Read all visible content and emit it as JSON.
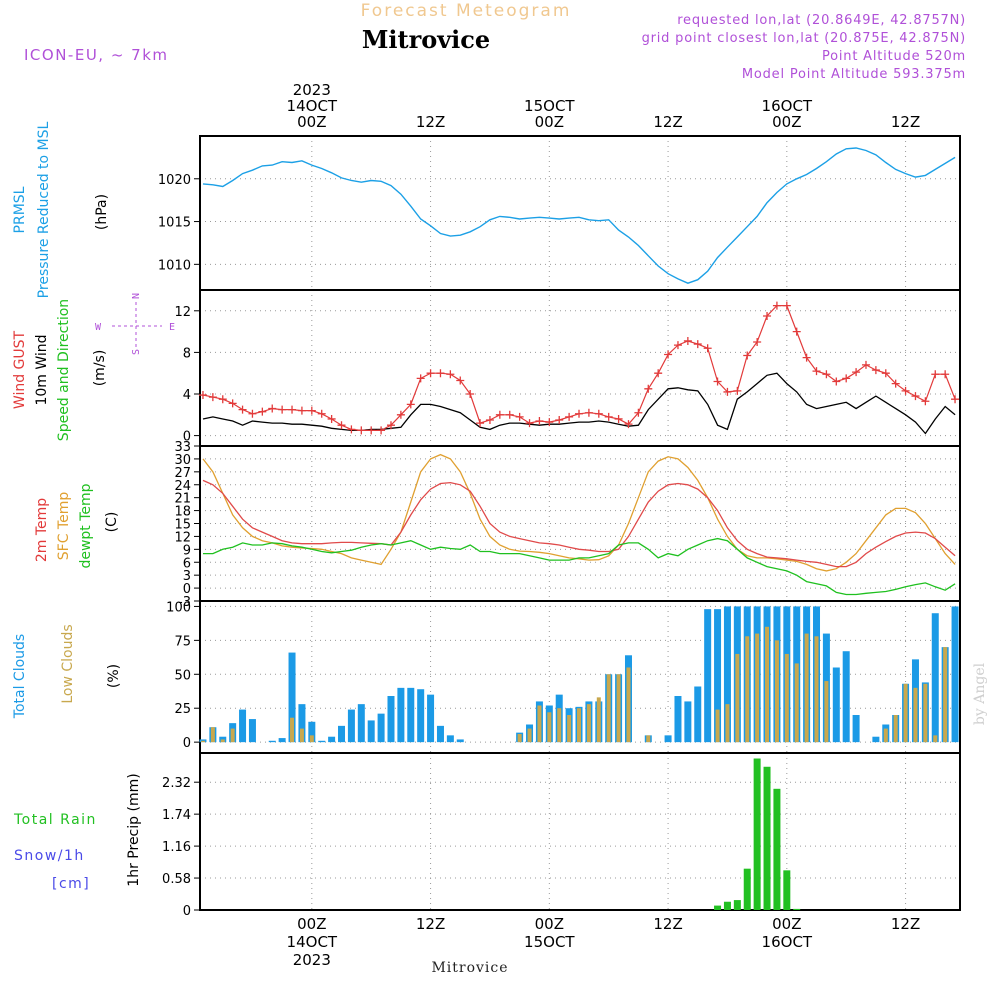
{
  "header": {
    "subtitle": "Forecast Meteogram",
    "title": "Mitrovice",
    "model": "ICON-EU, ~ 7km",
    "requested": "requested lon,lat (20.8649E, 42.8757N)",
    "gridpoint": "grid point closest lon,lat (20.875E, 42.875N)",
    "point_alt": "Point Altitude 520m",
    "model_alt": "Model Point Altitude 593.375m",
    "footer_name": "Mitrovice",
    "watermark": "by Angel"
  },
  "colors": {
    "pressure": "#1ca0e6",
    "gust": "#e23a3a",
    "wind": "#000000",
    "temp2m": "#e04a4a",
    "sfctemp": "#e0a030",
    "dewpt": "#1fc01f",
    "total_cloud": "#1b9ae6",
    "low_cloud": "#c8a84e",
    "rain": "#22c022",
    "snow": "#4a4ae8",
    "accent": "#b050d8",
    "subtitle": "#f0c890",
    "grid": "#9a9a9a"
  },
  "time_axis": {
    "top_labels": [
      {
        "t": 0,
        "lines": [
          "2023",
          "14OCT",
          "00Z"
        ]
      },
      {
        "t": 12,
        "lines": [
          "12Z"
        ]
      },
      {
        "t": 24,
        "lines": [
          "15OCT",
          "00Z"
        ]
      },
      {
        "t": 36,
        "lines": [
          "12Z"
        ]
      },
      {
        "t": 48,
        "lines": [
          "16OCT",
          "00Z"
        ]
      },
      {
        "t": 60,
        "lines": [
          "12Z"
        ]
      }
    ],
    "bottom_labels": [
      {
        "t": 0,
        "lines": [
          "00Z",
          "14OCT",
          "2023"
        ]
      },
      {
        "t": 12,
        "lines": [
          "12Z"
        ]
      },
      {
        "t": 24,
        "lines": [
          "00Z",
          "15OCT"
        ]
      },
      {
        "t": 36,
        "lines": [
          "12Z"
        ]
      },
      {
        "t": 48,
        "lines": [
          "00Z",
          "16OCT"
        ]
      },
      {
        "t": 60,
        "lines": [
          "12Z"
        ]
      }
    ],
    "tmin": -11.3,
    "tmax": 65.5
  },
  "chart_data": [
    {
      "type": "line",
      "id": "pressure",
      "ylabel_lines": [
        "PRMSL",
        "Pressure Reduced to MSL"
      ],
      "unit": "(hPa)",
      "ylim": [
        1007,
        1025
      ],
      "yticks": [
        1010,
        1015,
        1020
      ],
      "x": [
        -11,
        -10,
        -9,
        -8,
        -7,
        -6,
        -5,
        -4,
        -3,
        -2,
        -1,
        0,
        1,
        2,
        3,
        4,
        5,
        6,
        7,
        8,
        9,
        10,
        11,
        12,
        13,
        14,
        15,
        16,
        17,
        18,
        19,
        20,
        21,
        22,
        23,
        24,
        25,
        26,
        27,
        28,
        29,
        30,
        31,
        32,
        33,
        34,
        35,
        36,
        37,
        38,
        39,
        40,
        41,
        42,
        43,
        44,
        45,
        46,
        47,
        48,
        49,
        50,
        51,
        52,
        53,
        54,
        55,
        56,
        57,
        58,
        59,
        60,
        61,
        62,
        63,
        64,
        65
      ],
      "series": [
        {
          "name": "PRMSL",
          "values": [
            1019.4,
            1019.3,
            1019.1,
            1019.8,
            1020.6,
            1021.0,
            1021.5,
            1021.6,
            1022.0,
            1021.9,
            1022.1,
            1021.6,
            1021.2,
            1020.7,
            1020.1,
            1019.8,
            1019.6,
            1019.8,
            1019.7,
            1019.2,
            1018.2,
            1016.8,
            1015.3,
            1014.5,
            1013.6,
            1013.3,
            1013.4,
            1013.8,
            1014.4,
            1015.2,
            1015.6,
            1015.5,
            1015.3,
            1015.4,
            1015.5,
            1015.4,
            1015.3,
            1015.4,
            1015.5,
            1015.2,
            1015.1,
            1015.2,
            1014.0,
            1013.2,
            1012.2,
            1011.0,
            1009.8,
            1008.9,
            1008.3,
            1007.8,
            1008.2,
            1009.2,
            1010.8,
            1012.0,
            1013.2,
            1014.4,
            1015.6,
            1017.2,
            1018.4,
            1019.4,
            1020.0,
            1020.5,
            1021.2,
            1022.0,
            1022.9,
            1023.5,
            1023.6,
            1023.3,
            1022.8,
            1021.9,
            1021.1,
            1020.6,
            1020.2,
            1020.4,
            1021.1,
            1021.8,
            1022.5
          ]
        }
      ]
    },
    {
      "type": "line",
      "id": "wind",
      "ylabel_lines": [
        "Wind GUST",
        "10m Wind",
        "Speed and Direction"
      ],
      "unit": "(m/s)",
      "compass": {
        "n": "N",
        "s": "S",
        "w": "W",
        "e": "E"
      },
      "ylim": [
        -1,
        14
      ],
      "yticks": [
        0,
        4,
        8,
        12
      ],
      "x": [
        -11,
        -10,
        -9,
        -8,
        -7,
        -6,
        -5,
        -4,
        -3,
        -2,
        -1,
        0,
        1,
        2,
        3,
        4,
        5,
        6,
        7,
        8,
        9,
        10,
        11,
        12,
        13,
        14,
        15,
        16,
        17,
        18,
        19,
        20,
        21,
        22,
        23,
        24,
        25,
        26,
        27,
        28,
        29,
        30,
        31,
        32,
        33,
        34,
        35,
        36,
        37,
        38,
        39,
        40,
        41,
        42,
        43,
        44,
        45,
        46,
        47,
        48,
        49,
        50,
        51,
        52,
        53,
        54,
        55,
        56,
        57,
        58,
        59,
        60,
        61,
        62,
        63,
        64,
        65
      ],
      "series": [
        {
          "name": "Wind GUST",
          "values": [
            3.9,
            3.7,
            3.5,
            3.1,
            2.5,
            2.1,
            2.3,
            2.6,
            2.5,
            2.5,
            2.4,
            2.4,
            2.1,
            1.6,
            1.0,
            0.6,
            0.5,
            0.5,
            0.5,
            1.0,
            2.0,
            3.0,
            5.5,
            6.0,
            6.0,
            5.9,
            5.3,
            4.0,
            1.2,
            1.5,
            2.0,
            2.0,
            1.8,
            1.2,
            1.4,
            1.3,
            1.5,
            1.8,
            2.1,
            2.2,
            2.1,
            1.8,
            1.6,
            1.1,
            2.2,
            4.5,
            6.0,
            7.8,
            8.7,
            9.1,
            8.8,
            8.4,
            5.2,
            4.2,
            4.3,
            7.7,
            9.0,
            11.5,
            12.5,
            12.5,
            10.0,
            7.5,
            6.2,
            5.9,
            5.2,
            5.5,
            6.1,
            6.8,
            6.3,
            6.0,
            5.0,
            4.3,
            3.8,
            3.3,
            5.9,
            5.9,
            3.5
          ]
        },
        {
          "name": "10m Wind",
          "values": [
            1.6,
            1.8,
            1.6,
            1.4,
            1.0,
            1.4,
            1.3,
            1.2,
            1.2,
            1.1,
            1.1,
            1.0,
            0.9,
            0.7,
            0.6,
            0.5,
            0.5,
            0.6,
            0.6,
            0.7,
            0.8,
            2.0,
            3.0,
            3.0,
            2.8,
            2.5,
            2.2,
            1.5,
            0.8,
            0.6,
            1.0,
            1.2,
            1.2,
            1.1,
            1.0,
            1.1,
            1.1,
            1.2,
            1.3,
            1.3,
            1.4,
            1.3,
            1.1,
            0.9,
            1.0,
            2.5,
            3.5,
            4.5,
            4.6,
            4.4,
            4.3,
            3.0,
            1.0,
            0.6,
            3.5,
            4.2,
            5.0,
            5.8,
            6.0,
            5.0,
            4.2,
            3.0,
            2.6,
            2.8,
            3.0,
            3.2,
            2.6,
            3.2,
            3.8,
            3.2,
            2.6,
            2.0,
            1.3,
            0.2,
            1.6,
            2.8,
            2.0
          ]
        }
      ]
    },
    {
      "type": "line",
      "id": "temperature",
      "ylabel_lines": [
        "2m Temp",
        "SFC Temp",
        "dewpt Temp"
      ],
      "unit": "(C)",
      "ylim": [
        -3,
        33
      ],
      "yticks": [
        -3,
        0,
        3,
        6,
        9,
        12,
        15,
        18,
        21,
        24,
        27,
        30,
        33
      ],
      "x": [
        -11,
        -10,
        -9,
        -8,
        -7,
        -6,
        -5,
        -4,
        -3,
        -2,
        -1,
        0,
        1,
        2,
        3,
        4,
        5,
        6,
        7,
        8,
        9,
        10,
        11,
        12,
        13,
        14,
        15,
        16,
        17,
        18,
        19,
        20,
        21,
        22,
        23,
        24,
        25,
        26,
        27,
        28,
        29,
        30,
        31,
        32,
        33,
        34,
        35,
        36,
        37,
        38,
        39,
        40,
        41,
        42,
        43,
        44,
        45,
        46,
        47,
        48,
        49,
        50,
        51,
        52,
        53,
        54,
        55,
        56,
        57,
        58,
        59,
        60,
        61,
        62,
        63,
        64,
        65
      ],
      "series": [
        {
          "name": "2m Temp",
          "values": [
            25,
            24,
            22,
            19,
            16,
            14,
            13,
            12,
            11,
            10.5,
            10.3,
            10.3,
            10.3,
            10.5,
            10.6,
            10.6,
            10.5,
            10.4,
            10.3,
            10,
            13,
            17,
            20.5,
            23,
            24.3,
            24.5,
            24,
            22.5,
            19,
            15,
            13,
            12,
            11.5,
            11,
            10.5,
            10.3,
            10,
            9.5,
            9,
            8.8,
            8.5,
            8.5,
            9,
            12,
            16,
            20,
            22.5,
            24,
            24.3,
            24,
            23,
            21,
            18,
            14,
            11,
            9,
            8,
            7.2,
            7,
            6.8,
            6.5,
            6.2,
            6,
            5.5,
            5,
            5,
            6,
            8,
            9.5,
            10.8,
            12,
            12.8,
            13,
            12.8,
            11.5,
            9.5,
            7.5
          ]
        },
        {
          "name": "SFC Temp",
          "values": [
            30,
            27,
            22,
            17,
            14,
            12,
            11,
            10.5,
            9.8,
            9.5,
            9.3,
            9.2,
            9,
            8.5,
            8,
            7,
            6.5,
            6,
            5.5,
            9,
            13,
            20,
            27,
            30,
            31,
            30,
            27,
            22,
            16,
            12,
            10,
            9,
            8.6,
            8.5,
            8.3,
            8,
            7.5,
            7,
            6.8,
            6.5,
            6.6,
            7.5,
            10,
            15,
            21,
            27,
            29.5,
            30.5,
            30,
            28,
            25,
            21,
            16,
            12,
            9,
            7.5,
            7,
            7,
            6.8,
            6.5,
            6.2,
            5.5,
            4.5,
            4,
            4.5,
            6,
            8,
            11,
            14,
            17,
            18.5,
            18.5,
            17.5,
            15,
            11.5,
            8,
            5.5
          ]
        },
        {
          "name": "dewpt Temp",
          "values": [
            8,
            8,
            9,
            9.5,
            10.5,
            10,
            10,
            10.5,
            10.3,
            9.8,
            9.5,
            9,
            8.5,
            8.2,
            8.5,
            8.8,
            9.5,
            10,
            10.3,
            10,
            10.5,
            11,
            10,
            9,
            9.5,
            9.2,
            9,
            10,
            8.5,
            8.5,
            8,
            8,
            8,
            7.5,
            7,
            6.5,
            6.5,
            6.5,
            7,
            7,
            7.5,
            8,
            10,
            10.5,
            10.5,
            9,
            7,
            8,
            7.5,
            9,
            10,
            11,
            11.5,
            11,
            9,
            7,
            6,
            5,
            4.5,
            4,
            3,
            1.5,
            1,
            0.5,
            -1,
            -1.5,
            -1.5,
            -1.2,
            -1,
            -0.8,
            -0.3,
            0.3,
            0.8,
            1.2,
            0.3,
            -0.5,
            1
          ]
        }
      ]
    },
    {
      "type": "bar",
      "id": "clouds",
      "ylabel_lines": [
        "Total Clouds",
        "Low Clouds"
      ],
      "unit": "(%)",
      "ylim": [
        -8,
        104
      ],
      "yticks": [
        0,
        25,
        50,
        75,
        100
      ],
      "x": [
        -11,
        -10,
        -9,
        -8,
        -7,
        -6,
        -5,
        -4,
        -3,
        -2,
        -1,
        0,
        1,
        2,
        3,
        4,
        5,
        6,
        7,
        8,
        9,
        10,
        11,
        12,
        13,
        14,
        15,
        16,
        17,
        18,
        19,
        20,
        21,
        22,
        23,
        24,
        25,
        26,
        27,
        28,
        29,
        30,
        31,
        32,
        33,
        34,
        35,
        36,
        37,
        38,
        39,
        40,
        41,
        42,
        43,
        44,
        45,
        46,
        47,
        48,
        49,
        50,
        51,
        52,
        53,
        54,
        55,
        56,
        57,
        58,
        59,
        60,
        61,
        62,
        63,
        64,
        65
      ],
      "series": [
        {
          "name": "Total Clouds",
          "values": [
            2,
            11,
            4,
            14,
            24,
            17,
            0,
            1,
            3,
            66,
            28,
            15,
            1,
            4,
            12,
            24,
            28,
            16,
            21,
            34,
            40,
            40,
            39,
            35,
            12,
            5,
            2,
            0,
            0,
            0,
            0,
            0,
            7,
            13,
            30,
            27,
            35,
            25,
            26,
            30,
            30,
            50,
            50,
            64,
            0,
            5,
            0,
            5,
            34,
            30,
            41,
            98,
            98,
            100,
            100,
            100,
            100,
            100,
            100,
            100,
            100,
            100,
            100,
            80,
            55,
            67,
            20,
            0,
            4,
            13,
            20,
            43,
            61,
            44,
            95,
            70,
            100
          ]
        },
        {
          "name": "Low Clouds",
          "values": [
            1,
            11,
            2,
            10,
            0,
            0,
            0,
            0,
            0,
            18,
            10,
            5,
            0,
            0,
            0,
            0,
            0,
            0,
            0,
            0,
            0,
            0,
            0,
            0,
            0,
            0,
            0,
            0,
            0,
            0,
            0,
            0,
            6,
            10,
            27,
            22,
            25,
            20,
            25,
            28,
            33,
            50,
            50,
            55,
            0,
            5,
            0,
            0,
            0,
            0,
            0,
            0,
            24,
            28,
            65,
            78,
            80,
            85,
            75,
            65,
            58,
            80,
            78,
            45,
            0,
            0,
            0,
            0,
            0,
            10,
            20,
            43,
            40,
            43,
            5,
            70,
            0
          ]
        }
      ]
    },
    {
      "type": "bar",
      "id": "precip",
      "ylabel_lines": [
        "1hr Precip (mm)"
      ],
      "side_labels": {
        "rain": "Total Rain",
        "snow": "Snow/1h",
        "snow_unit": "[cm]"
      },
      "ylim": [
        0,
        2.85
      ],
      "yticks": [
        0,
        0.58,
        1.16,
        1.74,
        2.32
      ],
      "ytick_labels": [
        "0",
        "0.58",
        "1.16",
        "1.74",
        "2.32"
      ],
      "x": [
        41,
        42,
        43,
        44,
        45,
        46,
        47,
        48,
        49
      ],
      "series": [
        {
          "name": "Total Rain",
          "values": [
            0.08,
            0.15,
            0.18,
            0.75,
            2.75,
            2.6,
            2.2,
            0.72,
            0.02
          ]
        }
      ]
    }
  ]
}
